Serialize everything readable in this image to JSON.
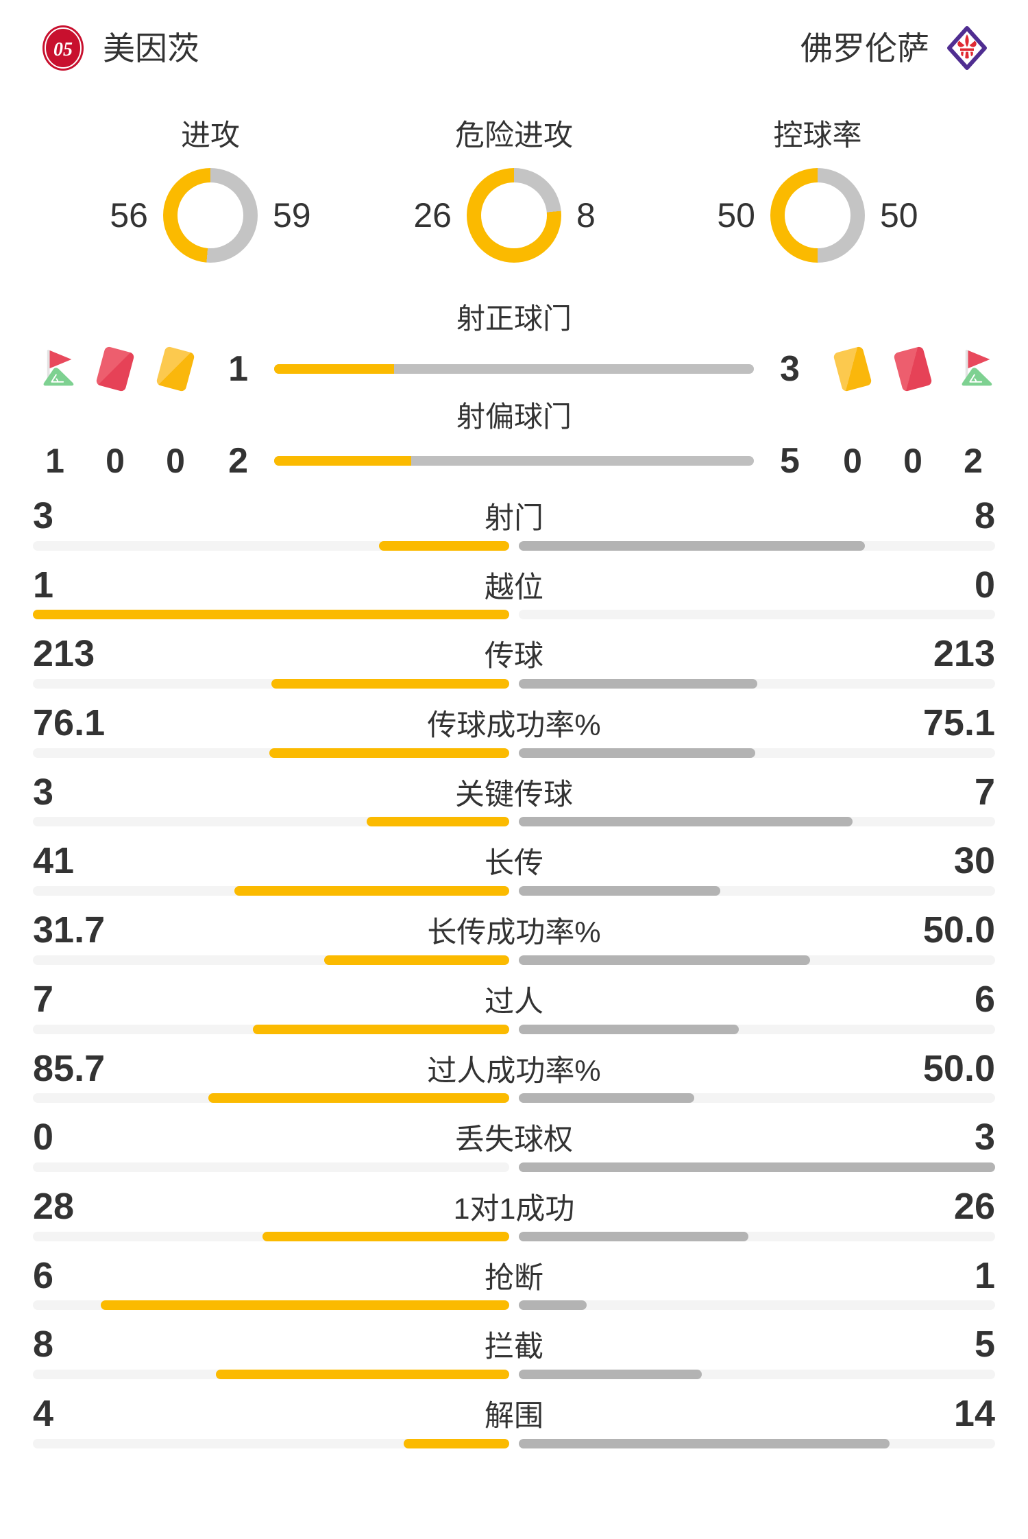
{
  "teams": {
    "home": {
      "name": "美因茨"
    },
    "away": {
      "name": "佛罗伦萨"
    }
  },
  "colors": {
    "home_yellow": "#FBBA00",
    "away_donut_gray": "#C4C4C4",
    "away_bar_gray": "#B3B3B3",
    "shot_bar_gray": "#BFBFBF",
    "track_gray": "#F4F4F4",
    "text": "#333333",
    "red_card": "#E64257",
    "yellow_card": "#FAB70C",
    "corner_flag_red": "#E8495C",
    "corner_grass_green": "#7ED191",
    "mainz_red": "#C8102E",
    "fiorentina_purple": "#4F2D91",
    "fiorentina_lily_red": "#E02A33"
  },
  "donuts": [
    {
      "label": "进攻",
      "home": 56,
      "away": 59
    },
    {
      "label": "危险进攻",
      "home": 26,
      "away": 8
    },
    {
      "label": "控球率",
      "home": 50,
      "away": 50
    }
  ],
  "shots": {
    "rows": [
      {
        "label": "射正球门",
        "home": "1",
        "away": "3"
      },
      {
        "label": "射偏球门",
        "home": "2",
        "away": "5"
      }
    ],
    "icons_home": [
      {
        "icon": "corner-flag",
        "count": "1"
      },
      {
        "icon": "red-card",
        "count": "0"
      },
      {
        "icon": "yellow-card",
        "count": "0"
      }
    ],
    "icons_away": [
      {
        "icon": "yellow-card",
        "count": "0"
      },
      {
        "icon": "red-card",
        "count": "0"
      },
      {
        "icon": "corner-flag",
        "count": "2"
      }
    ]
  },
  "stats": [
    {
      "label": "射门",
      "home": "3",
      "away": "8"
    },
    {
      "label": "越位",
      "home": "1",
      "away": "0"
    },
    {
      "label": "传球",
      "home": "213",
      "away": "213"
    },
    {
      "label": "传球成功率%",
      "home": "76.1",
      "away": "75.1"
    },
    {
      "label": "关键传球",
      "home": "3",
      "away": "7"
    },
    {
      "label": "长传",
      "home": "41",
      "away": "30"
    },
    {
      "label": "长传成功率%",
      "home": "31.7",
      "away": "50.0"
    },
    {
      "label": "过人",
      "home": "7",
      "away": "6"
    },
    {
      "label": "过人成功率%",
      "home": "85.7",
      "away": "50.0"
    },
    {
      "label": "丢失球权",
      "home": "0",
      "away": "3"
    },
    {
      "label": "1对1成功",
      "home": "28",
      "away": "26"
    },
    {
      "label": "抢断",
      "home": "6",
      "away": "1"
    },
    {
      "label": "拦截",
      "home": "8",
      "away": "5"
    },
    {
      "label": "解围",
      "home": "4",
      "away": "14"
    }
  ],
  "chart_data": [
    {
      "type": "pie",
      "title": "进攻",
      "series": [
        {
          "name": "美因茨",
          "value": 56
        },
        {
          "name": "佛罗伦萨",
          "value": 59
        }
      ],
      "legend_position": "sides"
    },
    {
      "type": "pie",
      "title": "危险进攻",
      "series": [
        {
          "name": "美因茨",
          "value": 26
        },
        {
          "name": "佛罗伦萨",
          "value": 8
        }
      ],
      "legend_position": "sides"
    },
    {
      "type": "pie",
      "title": "控球率",
      "series": [
        {
          "name": "美因茨",
          "value": 50
        },
        {
          "name": "佛罗伦萨",
          "value": 50
        }
      ],
      "legend_position": "sides"
    },
    {
      "type": "bar",
      "categories": [
        "射正球门",
        "射偏球门",
        "射门",
        "越位",
        "传球",
        "传球成功率%",
        "关键传球",
        "长传",
        "长传成功率%",
        "过人",
        "过人成功率%",
        "丢失球权",
        "1对1成功",
        "抢断",
        "拦截",
        "解围",
        "角球",
        "红牌",
        "黄牌"
      ],
      "series": [
        {
          "name": "美因茨",
          "values": [
            1,
            2,
            3,
            1,
            213,
            76.1,
            3,
            41,
            31.7,
            7,
            85.7,
            0,
            28,
            6,
            8,
            4,
            1,
            0,
            0
          ]
        },
        {
          "name": "佛罗伦萨",
          "values": [
            3,
            5,
            8,
            0,
            213,
            75.1,
            7,
            30,
            50.0,
            6,
            50.0,
            3,
            26,
            1,
            5,
            14,
            2,
            0,
            0
          ]
        }
      ],
      "orientation": "horizontal",
      "grid": false
    }
  ]
}
